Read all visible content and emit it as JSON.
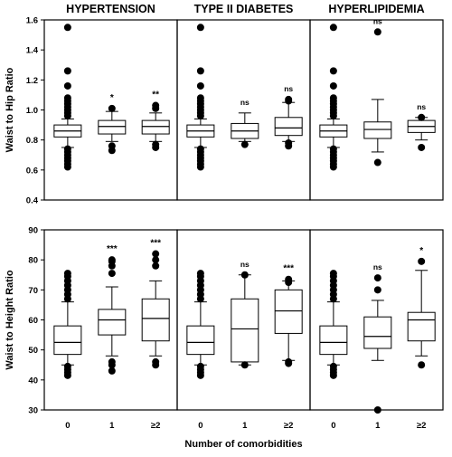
{
  "chart_data": {
    "type": "box",
    "column_titles": [
      "HYPERTENSION",
      "TYPE II DIABETES",
      "HYPERLIPIDEMIA"
    ],
    "x_categories": [
      "0",
      "1",
      "≥2"
    ],
    "x_axis_label": "Number of comorbidities",
    "rows": [
      {
        "ylabel": "Waist to Hip Ratio",
        "ylim": [
          0.4,
          1.6
        ],
        "yticks": [
          "0.4",
          "0.6",
          "0.8",
          "1.0",
          "1.2",
          "1.4",
          "1.6"
        ],
        "panels": [
          {
            "condition": "HYPERTENSION",
            "boxes": [
              {
                "category": "0",
                "whisker_low": 0.75,
                "q1": 0.82,
                "median": 0.86,
                "q3": 0.9,
                "whisker_high": 0.94,
                "outliers": [
                  0.62,
                  0.64,
                  0.66,
                  0.68,
                  0.7,
                  0.72,
                  0.74,
                  0.96,
                  0.98,
                  1.0,
                  1.02,
                  1.04,
                  1.06,
                  1.08,
                  1.16,
                  1.26,
                  1.55
                ],
                "significance": ""
              },
              {
                "category": "1",
                "whisker_low": 0.79,
                "q1": 0.84,
                "median": 0.89,
                "q3": 0.93,
                "whisker_high": 0.99,
                "outliers": [
                  0.73,
                  0.76,
                  1.01
                ],
                "significance": "*"
              },
              {
                "category": "≥2",
                "whisker_low": 0.79,
                "q1": 0.84,
                "median": 0.89,
                "q3": 0.93,
                "whisker_high": 0.98,
                "outliers": [
                  0.75,
                  0.77,
                  1.01,
                  1.03
                ],
                "significance": "**"
              }
            ]
          },
          {
            "condition": "TYPE II DIABETES",
            "boxes": [
              {
                "category": "0",
                "whisker_low": 0.75,
                "q1": 0.82,
                "median": 0.86,
                "q3": 0.9,
                "whisker_high": 0.94,
                "outliers": [
                  0.62,
                  0.64,
                  0.66,
                  0.68,
                  0.7,
                  0.72,
                  0.74,
                  0.96,
                  0.98,
                  1.0,
                  1.02,
                  1.04,
                  1.06,
                  1.08,
                  1.16,
                  1.26,
                  1.55
                ],
                "significance": ""
              },
              {
                "category": "1",
                "whisker_low": 0.79,
                "q1": 0.81,
                "median": 0.86,
                "q3": 0.91,
                "whisker_high": 0.98,
                "outliers": [
                  0.77
                ],
                "significance": "ns"
              },
              {
                "category": "≥2",
                "whisker_low": 0.79,
                "q1": 0.83,
                "median": 0.88,
                "q3": 0.95,
                "whisker_high": 1.05,
                "outliers": [
                  0.76,
                  0.78,
                  1.06,
                  1.07
                ],
                "significance": "ns"
              }
            ]
          },
          {
            "condition": "HYPERLIPIDEMIA",
            "boxes": [
              {
                "category": "0",
                "whisker_low": 0.75,
                "q1": 0.82,
                "median": 0.86,
                "q3": 0.9,
                "whisker_high": 0.94,
                "outliers": [
                  0.62,
                  0.64,
                  0.66,
                  0.68,
                  0.7,
                  0.72,
                  0.74,
                  0.96,
                  0.98,
                  1.0,
                  1.02,
                  1.04,
                  1.06,
                  1.08,
                  1.16,
                  1.26,
                  1.55
                ],
                "significance": ""
              },
              {
                "category": "1",
                "whisker_low": 0.72,
                "q1": 0.81,
                "median": 0.87,
                "q3": 0.92,
                "whisker_high": 1.07,
                "outliers": [
                  0.65,
                  1.52
                ],
                "significance": "ns"
              },
              {
                "category": "≥2",
                "whisker_low": 0.8,
                "q1": 0.85,
                "median": 0.89,
                "q3": 0.93,
                "whisker_high": 0.95,
                "outliers": [
                  0.75,
                  0.95
                ],
                "significance": "ns"
              }
            ]
          }
        ]
      },
      {
        "ylabel": "Waist to Height Ratio",
        "ylim": [
          30,
          90
        ],
        "yticks": [
          "30",
          "40",
          "50",
          "60",
          "70",
          "80",
          "90"
        ],
        "panels": [
          {
            "condition": "HYPERTENSION",
            "boxes": [
              {
                "category": "0",
                "whisker_low": 45,
                "q1": 48.5,
                "median": 52.5,
                "q3": 58,
                "whisker_high": 66,
                "outliers": [
                  41.5,
                  42.5,
                  43.5,
                  44.5,
                  67,
                  68.5,
                  70,
                  71.5,
                  73,
                  74.5,
                  75.5
                ],
                "significance": ""
              },
              {
                "category": "1",
                "whisker_low": 48,
                "q1": 55,
                "median": 60,
                "q3": 63.5,
                "whisker_high": 71,
                "outliers": [
                  43,
                  45,
                  46,
                  75.5,
                  78,
                  79.5,
                  80
                ],
                "significance": "***"
              },
              {
                "category": "≥2",
                "whisker_low": 48,
                "q1": 53,
                "median": 60.5,
                "q3": 67,
                "whisker_high": 73,
                "outliers": [
                  45,
                  46,
                  78,
                  80,
                  82
                ],
                "significance": "***"
              }
            ]
          },
          {
            "condition": "TYPE II DIABETES",
            "boxes": [
              {
                "category": "0",
                "whisker_low": 45,
                "q1": 48.5,
                "median": 52.5,
                "q3": 58,
                "whisker_high": 66,
                "outliers": [
                  41.5,
                  42.5,
                  43.5,
                  44.5,
                  67,
                  68.5,
                  70,
                  71.5,
                  73,
                  74.5,
                  75.5
                ],
                "significance": ""
              },
              {
                "category": "1",
                "whisker_low": 45,
                "q1": 46,
                "median": 57,
                "q3": 67,
                "whisker_high": 75,
                "outliers": [
                  45,
                  75
                ],
                "significance": "ns"
              },
              {
                "category": "≥2",
                "whisker_low": 46.5,
                "q1": 55.5,
                "median": 63,
                "q3": 70,
                "whisker_high": 73,
                "outliers": [
                  45.5,
                  46,
                  72.5,
                  73.5
                ],
                "significance": "***"
              }
            ]
          },
          {
            "condition": "HYPERLIPIDEMIA",
            "boxes": [
              {
                "category": "0",
                "whisker_low": 45,
                "q1": 48.5,
                "median": 52.5,
                "q3": 58,
                "whisker_high": 66,
                "outliers": [
                  41.5,
                  42.5,
                  43.5,
                  44.5,
                  67,
                  68.5,
                  70,
                  71.5,
                  73,
                  74.5,
                  75.5
                ],
                "significance": ""
              },
              {
                "category": "1",
                "whisker_low": 46.5,
                "q1": 50.5,
                "median": 54.5,
                "q3": 61,
                "whisker_high": 66.5,
                "outliers": [
                  30,
                  70,
                  74
                ],
                "significance": "ns"
              },
              {
                "category": "≥2",
                "whisker_low": 48,
                "q1": 53,
                "median": 60,
                "q3": 62.5,
                "whisker_high": 76.5,
                "outliers": [
                  45,
                  79.5
                ],
                "significance": "*"
              }
            ]
          }
        ]
      }
    ]
  }
}
